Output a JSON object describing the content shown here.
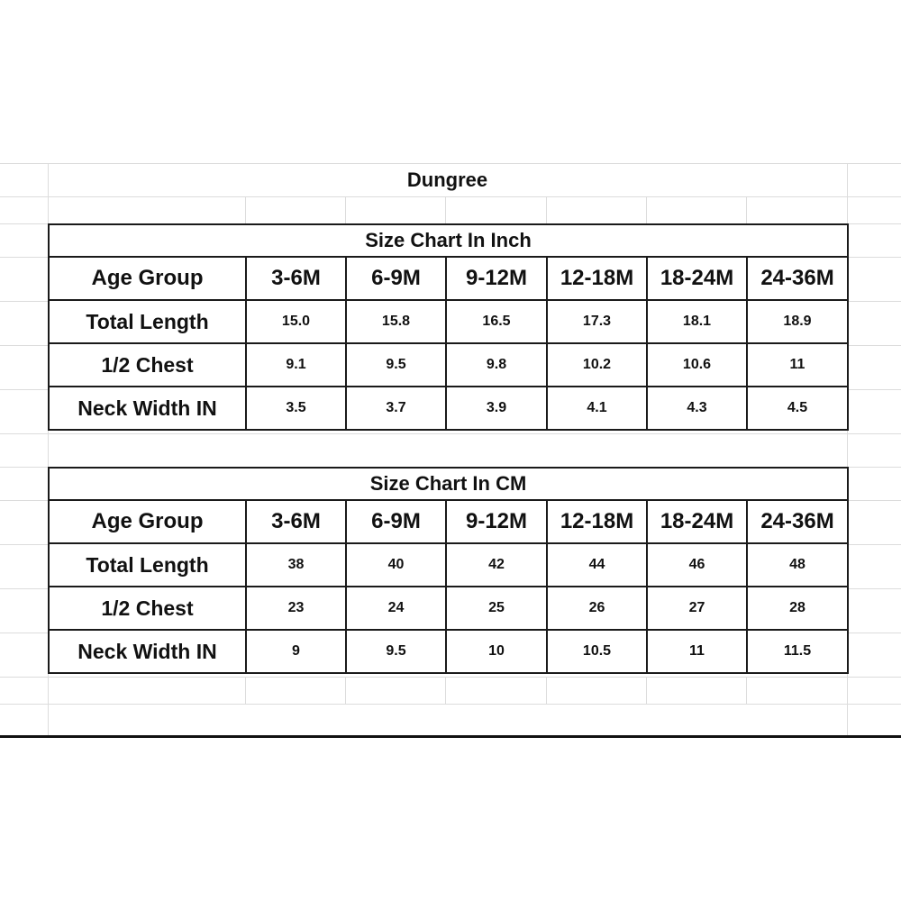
{
  "title": "Dungree",
  "tables": [
    {
      "caption": "Size Chart In Inch",
      "header_label": "Age Group",
      "columns": [
        "3-6M",
        "6-9M",
        "9-12M",
        "12-18M",
        "18-24M",
        "24-36M"
      ],
      "rows": [
        {
          "label": "Total Length",
          "values": [
            "15.0",
            "15.8",
            "16.5",
            "17.3",
            "18.1",
            "18.9"
          ]
        },
        {
          "label": "1/2 Chest",
          "values": [
            "9.1",
            "9.5",
            "9.8",
            "10.2",
            "10.6",
            "11"
          ]
        },
        {
          "label": "Neck Width IN",
          "values": [
            "3.5",
            "3.7",
            "3.9",
            "4.1",
            "4.3",
            "4.5"
          ]
        }
      ]
    },
    {
      "caption": "Size Chart In CM",
      "header_label": "Age Group",
      "columns": [
        "3-6M",
        "6-9M",
        "9-12M",
        "12-18M",
        "18-24M",
        "24-36M"
      ],
      "rows": [
        {
          "label": "Total Length",
          "values": [
            "38",
            "40",
            "42",
            "44",
            "46",
            "48"
          ]
        },
        {
          "label": "1/2 Chest",
          "values": [
            "23",
            "24",
            "25",
            "26",
            "27",
            "28"
          ]
        },
        {
          "label": "Neck Width IN",
          "values": [
            "9",
            "9.5",
            "10",
            "10.5",
            "11",
            "11.5"
          ]
        }
      ]
    }
  ]
}
